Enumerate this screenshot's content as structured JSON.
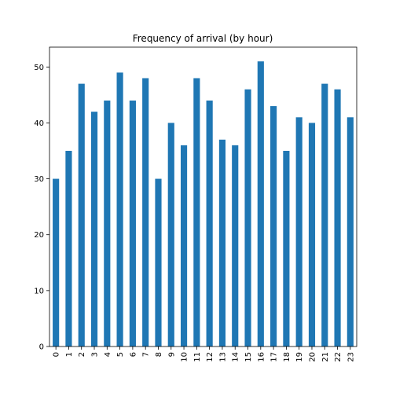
{
  "chart_data": {
    "type": "bar",
    "title": "Frequency of arrival (by hour)",
    "xlabel": "",
    "ylabel": "",
    "categories": [
      "0",
      "1",
      "2",
      "3",
      "4",
      "5",
      "6",
      "7",
      "8",
      "9",
      "10",
      "11",
      "12",
      "13",
      "14",
      "15",
      "16",
      "17",
      "18",
      "19",
      "20",
      "21",
      "22",
      "23"
    ],
    "values": [
      30,
      35,
      47,
      42,
      44,
      49,
      44,
      48,
      30,
      40,
      36,
      48,
      44,
      37,
      36,
      46,
      51,
      43,
      35,
      41,
      40,
      47,
      46,
      41
    ],
    "ylim": [
      0,
      53.55
    ],
    "yticks": [
      0,
      10,
      20,
      30,
      40,
      50
    ],
    "grid": false,
    "legend": "none",
    "bar_color": "#1f77b4"
  }
}
